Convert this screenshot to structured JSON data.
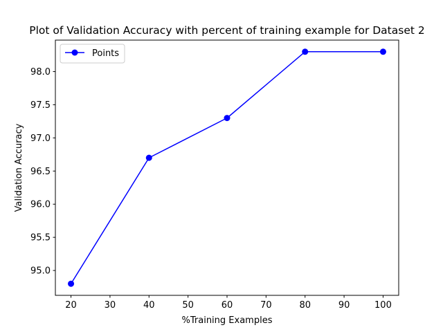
{
  "chart_data": {
    "type": "line",
    "title": "Plot of Validation Accuracy with percent of training example for Dataset 2",
    "xlabel": "%Training Examples",
    "ylabel": "Validation Accuracy",
    "xlim": [
      16,
      104
    ],
    "ylim": [
      94.625,
      98.475
    ],
    "x_ticks": [
      20,
      30,
      40,
      50,
      60,
      70,
      80,
      90,
      100
    ],
    "y_ticks": [
      95.0,
      95.5,
      96.0,
      96.5,
      97.0,
      97.5,
      98.0
    ],
    "y_tick_labels": [
      "95.0",
      "95.5",
      "96.0",
      "96.5",
      "97.0",
      "97.5",
      "98.0"
    ],
    "grid": false,
    "legend_position": "top-left",
    "series": [
      {
        "name": "Points",
        "color": "#0000ff",
        "marker": "circle",
        "x": [
          20,
          40,
          60,
          80,
          100
        ],
        "y": [
          94.8,
          96.7,
          97.3,
          98.3,
          98.3
        ]
      }
    ]
  }
}
